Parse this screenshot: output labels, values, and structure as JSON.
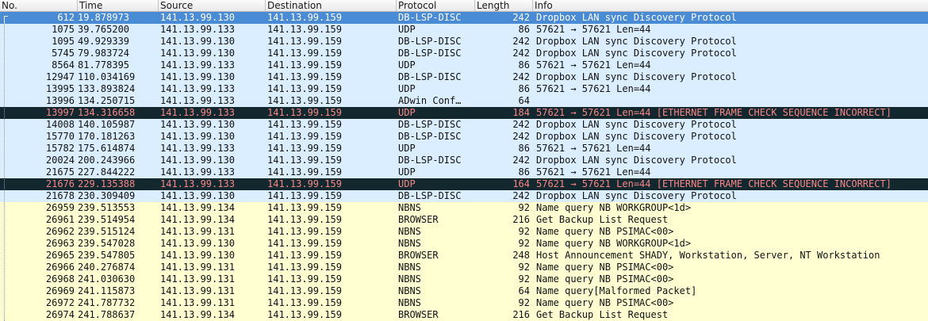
{
  "columns": {
    "no": "No.",
    "time": "Time",
    "source": "Source",
    "destination": "Destination",
    "protocol": "Protocol",
    "length": "Length",
    "info": "Info"
  },
  "colors": {
    "selected": "#4a8bd6",
    "udp_row": "#daeeff",
    "smb_row": "#ffffd2",
    "error_row_bg": "#12272e",
    "error_row_fg": "#f78787"
  },
  "packets": [
    {
      "no": "612",
      "time": "19.878973",
      "source": "141.13.99.130",
      "destination": "141.13.99.159",
      "protocol": "DB-LSP-DISC",
      "length": "242",
      "info": "Dropbox LAN sync Discovery Protocol",
      "style": "sel"
    },
    {
      "no": "1075",
      "time": "39.765200",
      "source": "141.13.99.133",
      "destination": "141.13.99.159",
      "protocol": "UDP",
      "length": "86",
      "info": "57621 → 57621 Len=44",
      "style": "blue"
    },
    {
      "no": "1095",
      "time": "49.929339",
      "source": "141.13.99.130",
      "destination": "141.13.99.159",
      "protocol": "DB-LSP-DISC",
      "length": "242",
      "info": "Dropbox LAN sync Discovery Protocol",
      "style": "blue"
    },
    {
      "no": "5745",
      "time": "79.983724",
      "source": "141.13.99.130",
      "destination": "141.13.99.159",
      "protocol": "DB-LSP-DISC",
      "length": "242",
      "info": "Dropbox LAN sync Discovery Protocol",
      "style": "blue"
    },
    {
      "no": "8564",
      "time": "81.778395",
      "source": "141.13.99.133",
      "destination": "141.13.99.159",
      "protocol": "UDP",
      "length": "86",
      "info": "57621 → 57621 Len=44",
      "style": "blue"
    },
    {
      "no": "12947",
      "time": "110.034169",
      "source": "141.13.99.130",
      "destination": "141.13.99.159",
      "protocol": "DB-LSP-DISC",
      "length": "242",
      "info": "Dropbox LAN sync Discovery Protocol",
      "style": "blue"
    },
    {
      "no": "13995",
      "time": "133.893824",
      "source": "141.13.99.133",
      "destination": "141.13.99.159",
      "protocol": "UDP",
      "length": "86",
      "info": "57621 → 57621 Len=44",
      "style": "blue"
    },
    {
      "no": "13996",
      "time": "134.250715",
      "source": "141.13.99.133",
      "destination": "141.13.99.159",
      "protocol": "ADwin Conf…",
      "length": "64",
      "info": "",
      "style": "blue"
    },
    {
      "no": "13997",
      "time": "134.316658",
      "source": "141.13.99.133",
      "destination": "141.13.99.159",
      "protocol": "UDP",
      "length": "184",
      "info": "57621 → 57621 Len=44 [ETHERNET FRAME CHECK SEQUENCE INCORRECT]",
      "style": "err"
    },
    {
      "no": "14008",
      "time": "140.105987",
      "source": "141.13.99.130",
      "destination": "141.13.99.159",
      "protocol": "DB-LSP-DISC",
      "length": "242",
      "info": "Dropbox LAN sync Discovery Protocol",
      "style": "blue"
    },
    {
      "no": "15770",
      "time": "170.181263",
      "source": "141.13.99.130",
      "destination": "141.13.99.159",
      "protocol": "DB-LSP-DISC",
      "length": "242",
      "info": "Dropbox LAN sync Discovery Protocol",
      "style": "blue"
    },
    {
      "no": "15782",
      "time": "175.614874",
      "source": "141.13.99.133",
      "destination": "141.13.99.159",
      "protocol": "UDP",
      "length": "86",
      "info": "57621 → 57621 Len=44",
      "style": "blue"
    },
    {
      "no": "20024",
      "time": "200.243966",
      "source": "141.13.99.130",
      "destination": "141.13.99.159",
      "protocol": "DB-LSP-DISC",
      "length": "242",
      "info": "Dropbox LAN sync Discovery Protocol",
      "style": "blue"
    },
    {
      "no": "21675",
      "time": "227.844222",
      "source": "141.13.99.133",
      "destination": "141.13.99.159",
      "protocol": "UDP",
      "length": "86",
      "info": "57621 → 57621 Len=44",
      "style": "blue"
    },
    {
      "no": "21676",
      "time": "229.135388",
      "source": "141.13.99.133",
      "destination": "141.13.99.159",
      "protocol": "UDP",
      "length": "164",
      "info": "57621 → 57621 Len=44 [ETHERNET FRAME CHECK SEQUENCE INCORRECT]",
      "style": "err"
    },
    {
      "no": "21678",
      "time": "230.309409",
      "source": "141.13.99.130",
      "destination": "141.13.99.159",
      "protocol": "DB-LSP-DISC",
      "length": "242",
      "info": "Dropbox LAN sync Discovery Protocol",
      "style": "blue"
    },
    {
      "no": "26959",
      "time": "239.513553",
      "source": "141.13.99.134",
      "destination": "141.13.99.159",
      "protocol": "NBNS",
      "length": "92",
      "info": "Name query NB WORKGROUP<1d>",
      "style": "yellow"
    },
    {
      "no": "26961",
      "time": "239.514954",
      "source": "141.13.99.134",
      "destination": "141.13.99.159",
      "protocol": "BROWSER",
      "length": "216",
      "info": "Get Backup List Request",
      "style": "yellow"
    },
    {
      "no": "26962",
      "time": "239.515124",
      "source": "141.13.99.131",
      "destination": "141.13.99.159",
      "protocol": "NBNS",
      "length": "92",
      "info": "Name query NB PSIMAC<00>",
      "style": "yellow"
    },
    {
      "no": "26963",
      "time": "239.547028",
      "source": "141.13.99.130",
      "destination": "141.13.99.159",
      "protocol": "NBNS",
      "length": "92",
      "info": "Name query NB WORKGROUP<1d>",
      "style": "yellow"
    },
    {
      "no": "26965",
      "time": "239.547805",
      "source": "141.13.99.130",
      "destination": "141.13.99.159",
      "protocol": "BROWSER",
      "length": "248",
      "info": "Host Announcement SHADY, Workstation, Server, NT Workstation",
      "style": "yellow"
    },
    {
      "no": "26966",
      "time": "240.276874",
      "source": "141.13.99.131",
      "destination": "141.13.99.159",
      "protocol": "NBNS",
      "length": "92",
      "info": "Name query NB PSIMAC<00>",
      "style": "yellow"
    },
    {
      "no": "26968",
      "time": "241.030630",
      "source": "141.13.99.131",
      "destination": "141.13.99.159",
      "protocol": "NBNS",
      "length": "92",
      "info": "Name query NB PSIMAC<00>",
      "style": "yellow"
    },
    {
      "no": "26969",
      "time": "241.115873",
      "source": "141.13.99.131",
      "destination": "141.13.99.159",
      "protocol": "NBNS",
      "length": "64",
      "info": "Name query[Malformed Packet]",
      "style": "yellow"
    },
    {
      "no": "26972",
      "time": "241.787732",
      "source": "141.13.99.131",
      "destination": "141.13.99.159",
      "protocol": "NBNS",
      "length": "92",
      "info": "Name query NB PSIMAC<00>",
      "style": "yellow"
    },
    {
      "no": "26974",
      "time": "241.788637",
      "source": "141.13.99.134",
      "destination": "141.13.99.159",
      "protocol": "BROWSER",
      "length": "216",
      "info": "Get Backup List Request",
      "style": "yellow"
    }
  ]
}
